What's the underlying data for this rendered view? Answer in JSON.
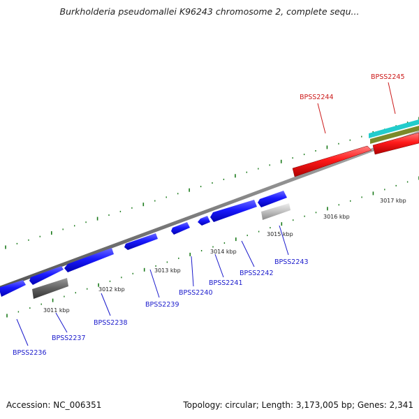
{
  "title": "Burkholderia pseudomallei K96243 chromosome 2, complete sequ...",
  "footer": {
    "accession": "Accession: NC_006351",
    "topology": "Topology: circular; Length: 3,173,005 bp; Genes: 2,341"
  },
  "colors": {
    "forward_gene": "#1a1aff",
    "highlight_gene": "#ff1a1a",
    "reverse_gene_grey": "#c0c0c0",
    "reverse_gene_dark": "#606060",
    "backbone": "#808080",
    "tick": "#1a7a1a",
    "label_blue": "#1a1acc",
    "label_red": "#cc1a1a",
    "cyan_track": "#22cccc",
    "olive_track": "#7a8a2a"
  },
  "kbp_labels": [
    "3011 kbp",
    "3012 kbp",
    "3013 kbp",
    "3014 kbp",
    "3015 kbp",
    "3016 kbp",
    "3017 kbp"
  ],
  "gene_labels": [
    {
      "id": "gene-bpss2236",
      "text": "BPSS2236",
      "color": "blue"
    },
    {
      "id": "gene-bpss2237",
      "text": "BPSS2237",
      "color": "blue"
    },
    {
      "id": "gene-bpss2238",
      "text": "BPSS2238",
      "color": "blue"
    },
    {
      "id": "gene-bpss2239",
      "text": "BPSS2239",
      "color": "blue"
    },
    {
      "id": "gene-bpss2240",
      "text": "BPSS2240",
      "color": "blue"
    },
    {
      "id": "gene-bpss2241",
      "text": "BPSS2241",
      "color": "blue"
    },
    {
      "id": "gene-bpss2242",
      "text": "BPSS2242",
      "color": "blue"
    },
    {
      "id": "gene-bpss2243",
      "text": "BPSS2243",
      "color": "blue"
    },
    {
      "id": "gene-bpss2244",
      "text": "BPSS2244",
      "color": "red"
    },
    {
      "id": "gene-bpss2245",
      "text": "BPSS2245",
      "color": "red"
    }
  ]
}
